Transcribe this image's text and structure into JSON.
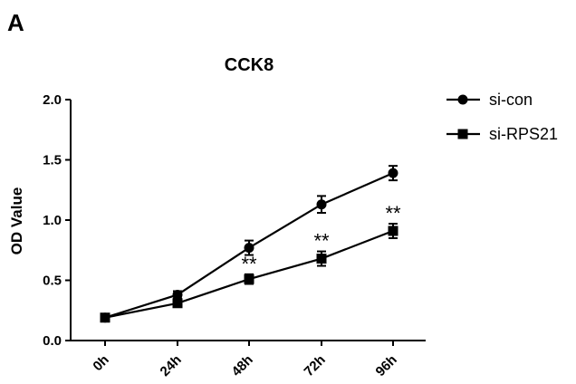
{
  "panel_label": "A",
  "chart_data": {
    "type": "line",
    "title": "CCK8",
    "xlabel": "",
    "ylabel": "OD Value",
    "categories": [
      "0h",
      "24h",
      "48h",
      "72h",
      "96h"
    ],
    "ylim": [
      0.0,
      2.0
    ],
    "yticks": [
      "0.0",
      "0.5",
      "1.0",
      "1.5",
      "2.0"
    ],
    "legend_position": "top-right",
    "grid": false,
    "series": [
      {
        "name": "si-con",
        "marker": "circle",
        "values": [
          0.19,
          0.38,
          0.77,
          1.13,
          1.39
        ],
        "errors": [
          0.02,
          0.03,
          0.06,
          0.07,
          0.06
        ]
      },
      {
        "name": "si-RPS21",
        "marker": "square",
        "values": [
          0.19,
          0.31,
          0.51,
          0.68,
          0.91
        ],
        "errors": [
          0.02,
          0.03,
          0.04,
          0.06,
          0.06
        ]
      }
    ],
    "annotations": [
      {
        "category": "48h",
        "text": "**"
      },
      {
        "category": "72h",
        "text": "**"
      },
      {
        "category": "96h",
        "text": "**"
      }
    ]
  }
}
